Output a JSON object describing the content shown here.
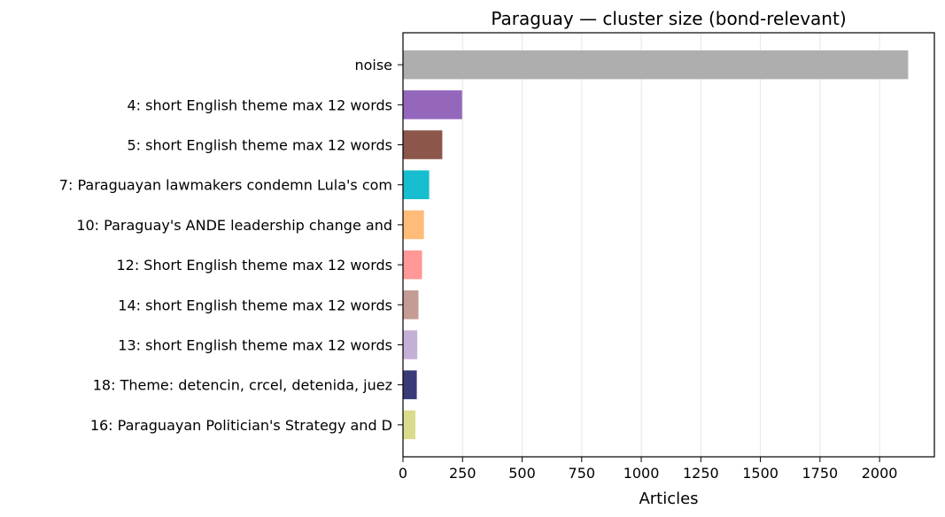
{
  "chart_data": {
    "type": "bar",
    "orientation": "horizontal",
    "title": "Paraguay — cluster size (bond-relevant)",
    "xlabel": "Articles",
    "ylabel": "",
    "xlim": [
      0,
      2230
    ],
    "xticks": [
      0,
      250,
      500,
      750,
      1000,
      1250,
      1500,
      1750,
      2000
    ],
    "grid": "vertical",
    "categories": [
      "noise",
      "4: short English theme max 12 words",
      "5: short English theme max 12 words",
      "7: Paraguayan lawmakers condemn Lula's com",
      "10: Paraguay's ANDE leadership change and ",
      "12: Short English theme max 12 words",
      "14: short English theme max 12 words",
      "13: short English theme max 12 words",
      "18: Theme: detencin, crcel, detenida, juez",
      "16: Paraguayan Politician's Strategy and D"
    ],
    "values": [
      2120,
      248,
      165,
      110,
      88,
      80,
      65,
      60,
      58,
      52
    ],
    "colors": [
      "#aeaeae",
      "#9467bd",
      "#8c564b",
      "#17becf",
      "#ffbb78",
      "#ff9896",
      "#c49c94",
      "#c5b0d5",
      "#393b79",
      "#dbdb8d"
    ]
  }
}
